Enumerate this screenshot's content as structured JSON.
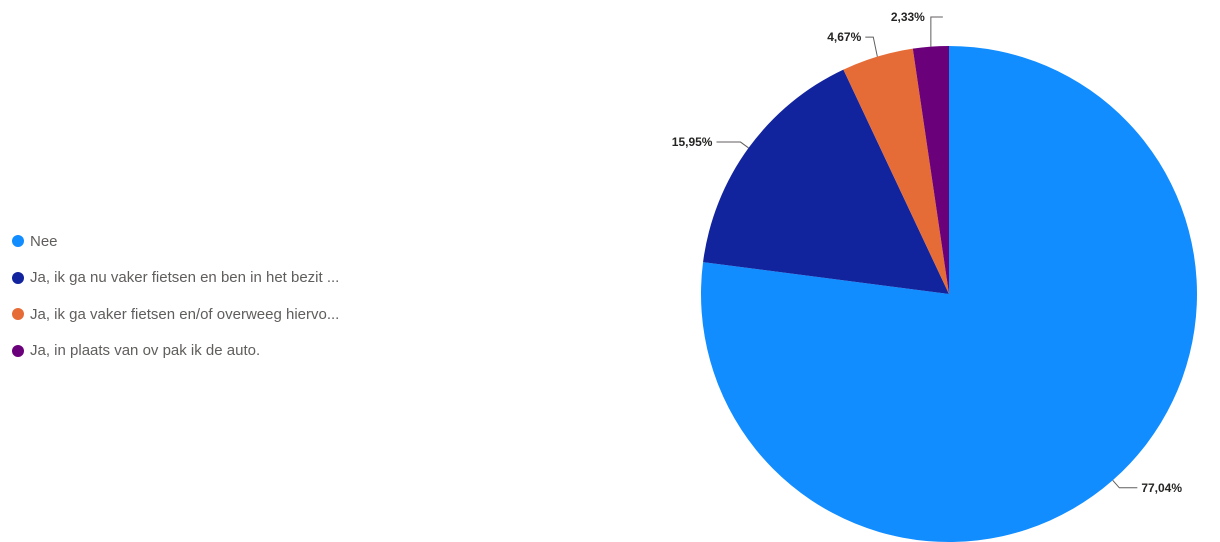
{
  "chart_data": {
    "type": "pie",
    "title": "",
    "legend_position": "left",
    "slices": [
      {
        "label": "Nee",
        "value": 77.04,
        "data_label": "77,04%",
        "color": "#118DFF"
      },
      {
        "label": "Ja, ik ga nu vaker fietsen en ben in het bezit ...",
        "value": 15.95,
        "data_label": "15,95%",
        "color": "#12239E"
      },
      {
        "label": "Ja, ik ga vaker fietsen en/of overweeg hiervo...",
        "value": 4.67,
        "data_label": "4,67%",
        "color": "#E66C37"
      },
      {
        "label": "Ja, in plaats van ov pak ik de auto.",
        "value": 2.33,
        "data_label": "2,33%",
        "color": "#6B007B"
      }
    ]
  }
}
